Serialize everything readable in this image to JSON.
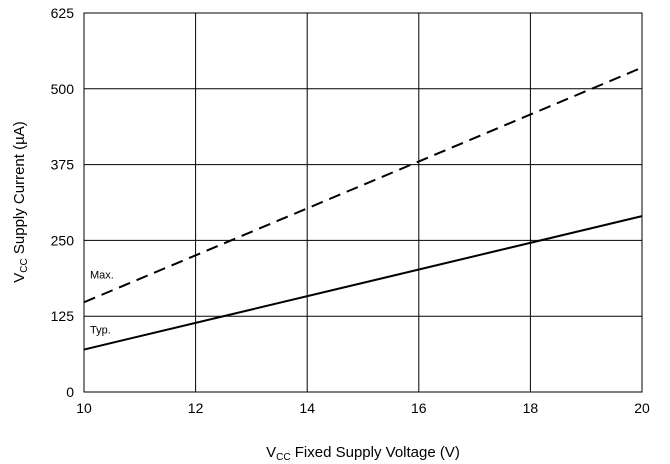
{
  "chart_data": {
    "type": "line",
    "xlabel": {
      "prefix": "V",
      "sub": "CC",
      "rest": " Fixed Supply Voltage (V)"
    },
    "ylabel": {
      "prefix": "V",
      "sub": "CC",
      "rest": " Supply Current (µA)"
    },
    "xlim": [
      10,
      20
    ],
    "ylim": [
      0,
      625
    ],
    "xticks": [
      10,
      12,
      14,
      16,
      18,
      20
    ],
    "yticks": [
      0,
      125,
      250,
      375,
      500,
      625
    ],
    "grid": true,
    "series": [
      {
        "name": "Max.",
        "style": "dashed",
        "x": [
          10,
          20
        ],
        "y": [
          148,
          535
        ]
      },
      {
        "name": "Typ.",
        "style": "solid",
        "x": [
          10,
          20
        ],
        "y": [
          70,
          290
        ]
      }
    ]
  }
}
